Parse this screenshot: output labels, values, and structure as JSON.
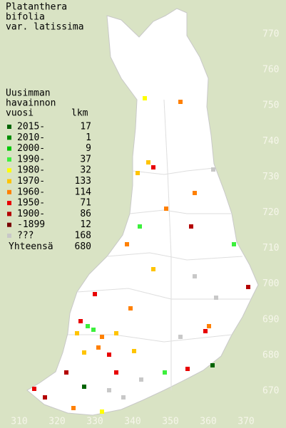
{
  "title": [
    "Platanthera",
    "bifolia",
    "var. latissima"
  ],
  "legend": {
    "header": [
      "Uusimman",
      "havainnon",
      "vuosi"
    ],
    "count_header": "lkm",
    "rows": [
      {
        "label": "2015-",
        "count": 17,
        "color": "#006400"
      },
      {
        "label": "2010-",
        "count": 1,
        "color": "#008c00"
      },
      {
        "label": "2000-",
        "count": 9,
        "color": "#00c800"
      },
      {
        "label": "1990-",
        "count": 37,
        "color": "#3cf03c"
      },
      {
        "label": "1980-",
        "count": 32,
        "color": "#ffff00"
      },
      {
        "label": "1970-",
        "count": 133,
        "color": "#ffc400"
      },
      {
        "label": "1960-",
        "count": 114,
        "color": "#ff8000"
      },
      {
        "label": "1950-",
        "count": 71,
        "color": "#e80000"
      },
      {
        "label": "1900-",
        "count": 86,
        "color": "#b40000"
      },
      {
        "label": "-1899",
        "count": 12,
        "color": "#780000"
      },
      {
        "label": "???",
        "count": 168,
        "color": "#c8c8c8"
      }
    ],
    "total_label": "Yhteensä",
    "total": 680
  },
  "map": {
    "xticks": [
      310,
      320,
      330,
      340,
      350,
      360,
      370
    ],
    "yticks": [
      770,
      760,
      750,
      740,
      730,
      720,
      710,
      700,
      690,
      680,
      670
    ]
  }
}
